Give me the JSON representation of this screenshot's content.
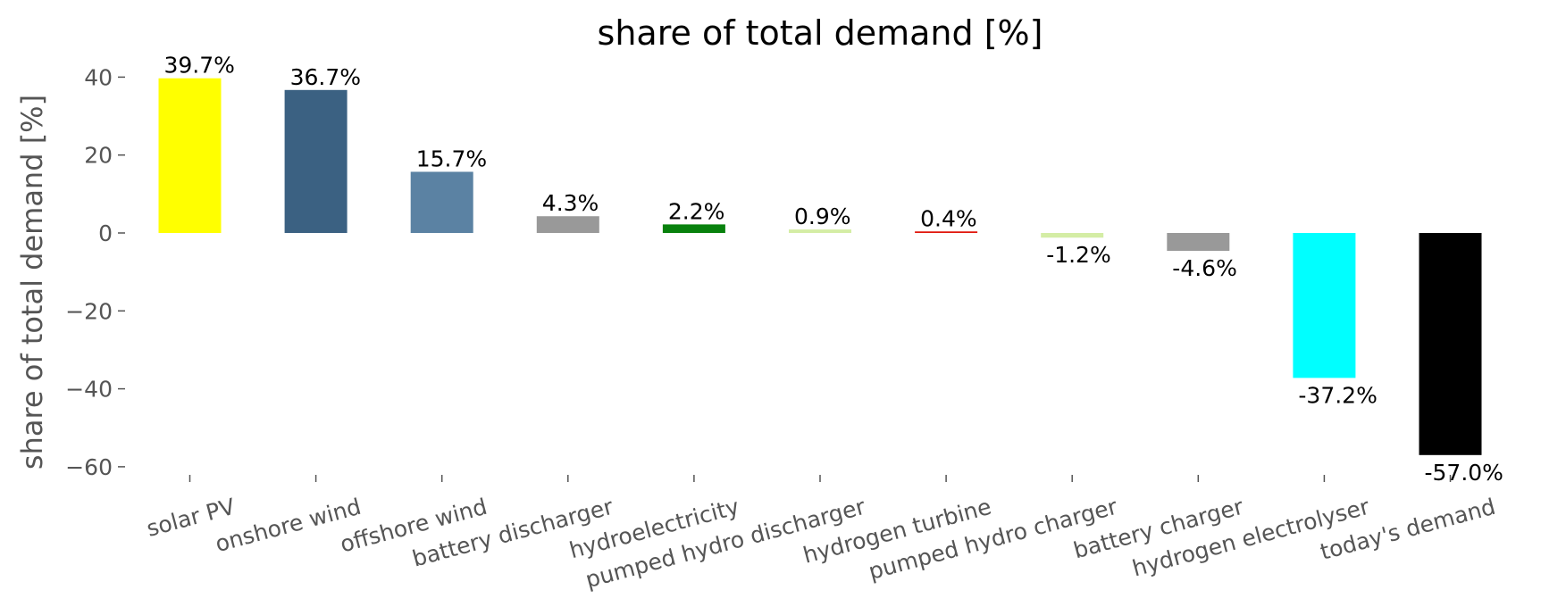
{
  "chart_data": {
    "type": "bar",
    "title": "share of total demand [%]",
    "ylabel": "share of total demand [%]",
    "xlabel": "",
    "ylim": [
      -62,
      48
    ],
    "yticks": [
      40,
      20,
      0,
      -20,
      -40,
      -60
    ],
    "ytick_labels": [
      "40",
      "20",
      "0",
      "−20",
      "−40",
      "−60"
    ],
    "grid": false,
    "categories": [
      "solar PV",
      "onshore wind",
      "offshore wind",
      "battery discharger",
      "hydroelectricity",
      "pumped hydro discharger",
      "hydrogen turbine",
      "pumped hydro charger",
      "battery charger",
      "hydrogen electrolyser",
      "today's demand"
    ],
    "values": [
      39.7,
      36.7,
      15.7,
      4.3,
      2.2,
      0.9,
      0.4,
      -1.2,
      -4.6,
      -37.2,
      -57.0
    ],
    "labels": [
      "39.7%",
      "36.7%",
      "15.7%",
      "4.3%",
      "2.2%",
      "0.9%",
      "0.4%",
      "-1.2%",
      "-4.6%",
      "-37.2%",
      "-57.0%"
    ],
    "colors": [
      "#ffff00",
      "#3b6182",
      "#5b82a3",
      "#999999",
      "#08810d",
      "#d4eda5",
      "#e0160b",
      "#d4eda5",
      "#999999",
      "#00ffff",
      "#000000"
    ]
  }
}
